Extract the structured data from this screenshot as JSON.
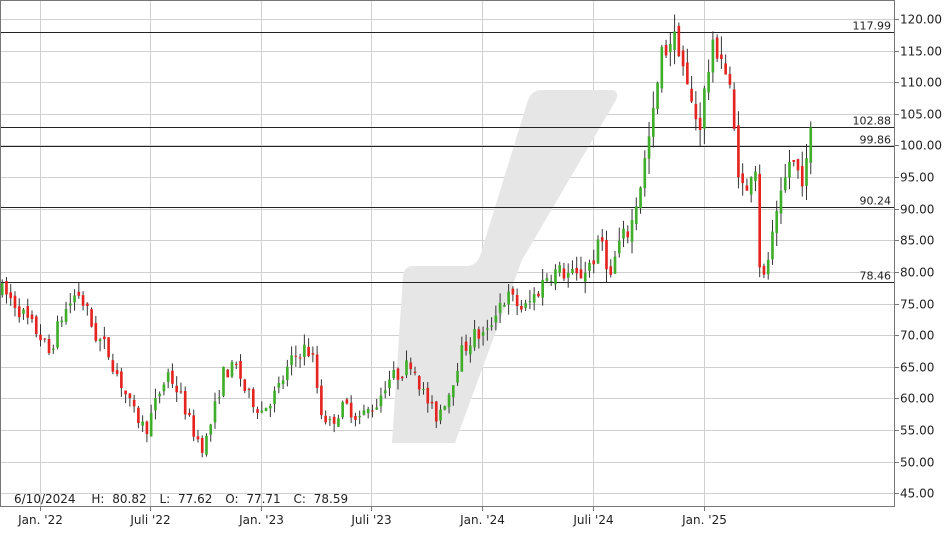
{
  "chart_data": {
    "type": "candlestick",
    "colors": {
      "up": "#3fae2a",
      "down": "#e52420",
      "wick": "#333333",
      "grid": "#d0d0d0",
      "frame": "#777777",
      "level_line": "#222222",
      "watermark": "#e6e6e6"
    },
    "y_axis": {
      "position": "right",
      "ylim": [
        43.0,
        123.0
      ],
      "ticks": [
        "45.00",
        "50.00",
        "55.00",
        "60.00",
        "65.00",
        "70.00",
        "75.00",
        "80.00",
        "85.00",
        "90.00",
        "95.00",
        "100.00",
        "105.00",
        "110.00",
        "115.00",
        "120.00"
      ]
    },
    "x_axis": {
      "ticks": [
        {
          "label": "Jan. '22",
          "t": 0
        },
        {
          "label": "Juli '22",
          "t": 0.4966
        },
        {
          "label": "Jan. '23",
          "t": 1.0
        },
        {
          "label": "Juli '23",
          "t": 1.4966
        },
        {
          "label": "Jan. '24",
          "t": 2.0
        },
        {
          "label": "Juli '24",
          "t": 2.4986
        },
        {
          "label": "Jan. '25",
          "t": 3.0
        }
      ],
      "t_range": [
        -0.18,
        3.86
      ]
    },
    "grid": true,
    "levels": [
      {
        "label": "117.99",
        "value": 117.99
      },
      {
        "label": "102.88",
        "value": 102.88
      },
      {
        "label": "99.86",
        "value": 99.86
      },
      {
        "label": "90.24",
        "value": 90.24
      },
      {
        "label": "78.46",
        "value": 78.46
      }
    ],
    "anchors": [
      {
        "t": -0.17,
        "v": 77
      },
      {
        "t": -0.11,
        "v": 75
      },
      {
        "t": -0.05,
        "v": 72
      },
      {
        "t": 0.0,
        "v": 70
      },
      {
        "t": 0.04,
        "v": 67
      },
      {
        "t": 0.1,
        "v": 73
      },
      {
        "t": 0.17,
        "v": 77
      },
      {
        "t": 0.21,
        "v": 74
      },
      {
        "t": 0.25,
        "v": 70
      },
      {
        "t": 0.3,
        "v": 68
      },
      {
        "t": 0.36,
        "v": 63
      },
      {
        "t": 0.42,
        "v": 58
      },
      {
        "t": 0.48,
        "v": 55
      },
      {
        "t": 0.53,
        "v": 60
      },
      {
        "t": 0.58,
        "v": 64
      },
      {
        "t": 0.64,
        "v": 60
      },
      {
        "t": 0.69,
        "v": 55
      },
      {
        "t": 0.74,
        "v": 52
      },
      {
        "t": 0.78,
        "v": 57
      },
      {
        "t": 0.83,
        "v": 64
      },
      {
        "t": 0.89,
        "v": 65
      },
      {
        "t": 0.93,
        "v": 61
      },
      {
        "t": 1.0,
        "v": 58
      },
      {
        "t": 1.07,
        "v": 61
      },
      {
        "t": 1.14,
        "v": 66
      },
      {
        "t": 1.19,
        "v": 68
      },
      {
        "t": 1.23,
        "v": 67
      },
      {
        "t": 1.27,
        "v": 58
      },
      {
        "t": 1.31,
        "v": 56
      },
      {
        "t": 1.38,
        "v": 59
      },
      {
        "t": 1.44,
        "v": 57
      },
      {
        "t": 1.52,
        "v": 59
      },
      {
        "t": 1.57,
        "v": 63
      },
      {
        "t": 1.63,
        "v": 64
      },
      {
        "t": 1.68,
        "v": 66
      },
      {
        "t": 1.73,
        "v": 61
      },
      {
        "t": 1.79,
        "v": 57
      },
      {
        "t": 1.85,
        "v": 61
      },
      {
        "t": 1.9,
        "v": 67
      },
      {
        "t": 1.96,
        "v": 70
      },
      {
        "t": 2.02,
        "v": 70
      },
      {
        "t": 2.07,
        "v": 75
      },
      {
        "t": 2.12,
        "v": 76
      },
      {
        "t": 2.19,
        "v": 74
      },
      {
        "t": 2.25,
        "v": 77
      },
      {
        "t": 2.3,
        "v": 80
      },
      {
        "t": 2.36,
        "v": 80
      },
      {
        "t": 2.43,
        "v": 79
      },
      {
        "t": 2.5,
        "v": 82
      },
      {
        "t": 2.54,
        "v": 85
      },
      {
        "t": 2.58,
        "v": 79
      },
      {
        "t": 2.61,
        "v": 84
      },
      {
        "t": 2.67,
        "v": 87
      },
      {
        "t": 2.72,
        "v": 95
      },
      {
        "t": 2.77,
        "v": 104
      },
      {
        "t": 2.81,
        "v": 114
      },
      {
        "t": 2.85,
        "v": 117
      },
      {
        "t": 2.89,
        "v": 116
      },
      {
        "t": 2.93,
        "v": 108
      },
      {
        "t": 2.98,
        "v": 103
      },
      {
        "t": 3.03,
        "v": 114
      },
      {
        "t": 3.07,
        "v": 116
      },
      {
        "t": 3.12,
        "v": 108
      },
      {
        "t": 3.15,
        "v": 98
      },
      {
        "t": 3.19,
        "v": 91
      },
      {
        "t": 3.23,
        "v": 100
      },
      {
        "t": 3.26,
        "v": 76
      },
      {
        "t": 3.29,
        "v": 82
      },
      {
        "t": 3.33,
        "v": 88
      },
      {
        "t": 3.39,
        "v": 98
      },
      {
        "t": 3.44,
        "v": 95
      },
      {
        "t": 3.47,
        "v": 97
      },
      {
        "t": 3.49,
        "v": 104
      }
    ],
    "volatility_percent": 2.8,
    "info": {
      "date": "6/10/2024",
      "high_label": "H:",
      "high": "80.82",
      "low_label": "L:",
      "low": "77.62",
      "open_label": "O:",
      "open": "77.71",
      "close_label": "C:",
      "close": "78.59"
    }
  }
}
